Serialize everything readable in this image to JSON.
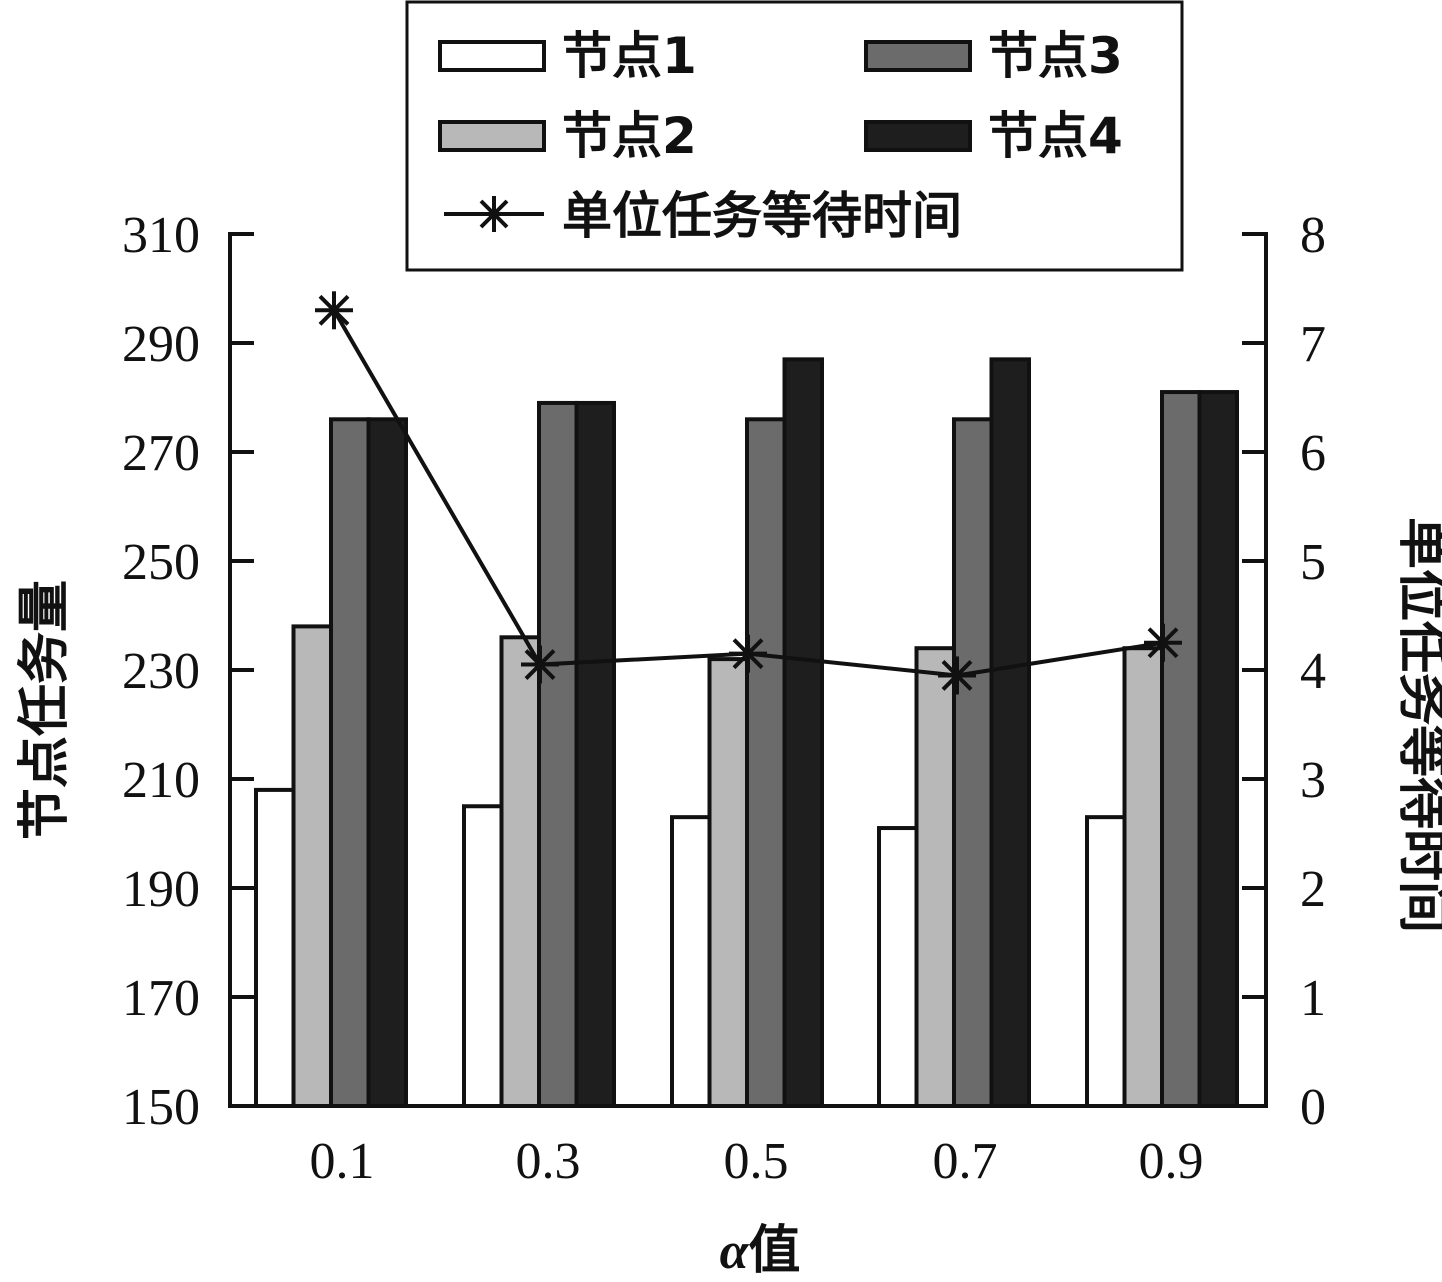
{
  "chart_data": {
    "type": "bar",
    "categories": [
      "0.1",
      "0.3",
      "0.5",
      "0.7",
      "0.9"
    ],
    "series": [
      {
        "name": "节点1",
        "values": [
          208,
          205,
          203,
          201,
          203
        ],
        "color": "#ffffff"
      },
      {
        "name": "节点2",
        "values": [
          238,
          236,
          232,
          234,
          234
        ],
        "color": "#b8b8b8"
      },
      {
        "name": "节点3",
        "values": [
          276,
          279,
          276,
          276,
          281
        ],
        "color": "#6b6b6b"
      },
      {
        "name": "节点4",
        "values": [
          276,
          279,
          287,
          287,
          281
        ],
        "color": "#1e1e1e"
      }
    ],
    "line_series": {
      "name": "单位任务等待时间",
      "values": [
        7.3,
        4.05,
        4.15,
        3.95,
        4.25
      ],
      "axis": "right"
    },
    "y_left": {
      "label": "节点任务量",
      "ylim": [
        150,
        310
      ],
      "ticks": [
        "150",
        "170",
        "190",
        "210",
        "230",
        "250",
        "270",
        "290",
        "310"
      ]
    },
    "y_right": {
      "label": "单位任务等待时间",
      "ylim": [
        0,
        8
      ],
      "ticks": [
        "0",
        "1",
        "2",
        "3",
        "4",
        "5",
        "6",
        "7",
        "8"
      ]
    },
    "xlabel": {
      "symbol": "α",
      "text": "值"
    },
    "legend": {
      "position": "top-center",
      "entries": [
        "节点1",
        "节点3",
        "节点2",
        "节点4",
        "单位任务等待时间"
      ]
    },
    "grid": false
  }
}
